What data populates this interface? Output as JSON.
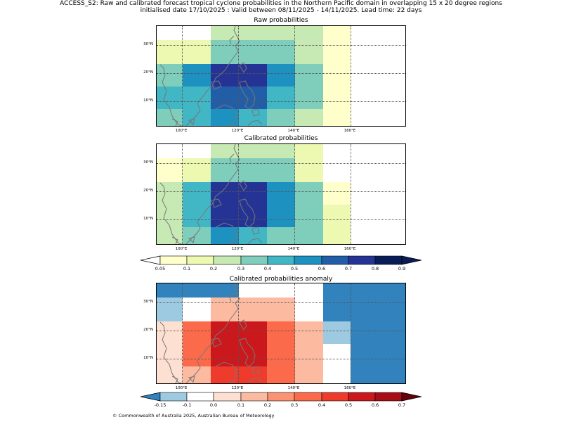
{
  "header": {
    "line1": "ACCESS_S2: Raw and calibrated forecast tropical cyclone probabilities in the Northern Pacific domain in overlapping 15 x 20 degree regions",
    "line2": "initialised date 17/10/2025 :  Valid between 08/11/2025 - 14/11/2025. Lead time: 22 days"
  },
  "axes": {
    "lat_labels": [
      "30°N",
      "20°N",
      "10°N"
    ],
    "lon_labels": [
      "100°E",
      "120°E",
      "140°E",
      "160°E"
    ]
  },
  "panels": {
    "raw": {
      "title": "Raw probabilities",
      "rows": [
        [
          "#ffffff",
          "#ffffff",
          "#c7e9b4",
          "#c7e9b4",
          "#c7e9b4",
          "#c7e9b4",
          "#ffffcc",
          "#ffffff",
          "#ffffff"
        ],
        [
          "#edf8b1",
          "#edf8b1",
          "#7fcdbb",
          "#7fcdbb",
          "#7fcdbb",
          "#c7e9b4",
          "#ffffcc",
          "#ffffff",
          "#ffffff"
        ],
        [
          "#7fcdbb",
          "#1d91c0",
          "#253494",
          "#253494",
          "#1d91c0",
          "#7fcdbb",
          "#ffffcc",
          "#ffffff",
          "#ffffff"
        ],
        [
          "#41b6c4",
          "#41b6c4",
          "#225ea8",
          "#225ea8",
          "#41b6c4",
          "#7fcdbb",
          "#ffffcc",
          "#ffffff",
          "#ffffff"
        ],
        [
          "#7fcdbb",
          "#41b6c4",
          "#1d91c0",
          "#41b6c4",
          "#7fcdbb",
          "#c7e9b4",
          "#ffffcc",
          "#ffffff",
          "#ffffff"
        ]
      ]
    },
    "calibrated": {
      "title": "Calibrated probabilities",
      "rows": [
        [
          "#ffffff",
          "#ffffff",
          "#c7e9b4",
          "#c7e9b4",
          "#c7e9b4",
          "#edf8b1",
          "#ffffff",
          "#ffffff",
          "#ffffff"
        ],
        [
          "#ffffcc",
          "#edf8b1",
          "#7fcdbb",
          "#7fcdbb",
          "#7fcdbb",
          "#edf8b1",
          "#ffffff",
          "#ffffff",
          "#ffffff"
        ],
        [
          "#c7e9b4",
          "#41b6c4",
          "#253494",
          "#253494",
          "#1d91c0",
          "#7fcdbb",
          "#ffffcc",
          "#ffffff",
          "#ffffff"
        ],
        [
          "#c7e9b4",
          "#41b6c4",
          "#253494",
          "#253494",
          "#1d91c0",
          "#7fcdbb",
          "#edf8b1",
          "#ffffff",
          "#ffffff"
        ],
        [
          "#c7e9b4",
          "#7fcdbb",
          "#1d91c0",
          "#41b6c4",
          "#7fcdbb",
          "#7fcdbb",
          "#edf8b1",
          "#ffffff",
          "#ffffff"
        ]
      ]
    },
    "anomaly": {
      "title": "Calibrated probabilities anomaly",
      "rows": [
        [
          "#3182bd",
          "#3182bd",
          "#3182bd",
          "#ffffff",
          "#ffffff",
          "#ffffff",
          "#3182bd",
          "#3182bd",
          "#3182bd"
        ],
        [
          "#9ecae1",
          "#ffffff",
          "#fcbba1",
          "#fcbba1",
          "#fcbba1",
          "#ffffff",
          "#3182bd",
          "#3182bd",
          "#3182bd"
        ],
        [
          "#fee0d2",
          "#fb6a4a",
          "#cb181d",
          "#cb181d",
          "#fb6a4a",
          "#fcbba1",
          "#9ecae1",
          "#3182bd",
          "#3182bd"
        ],
        [
          "#fee0d2",
          "#fb6a4a",
          "#cb181d",
          "#cb181d",
          "#fb6a4a",
          "#fcbba1",
          "#ffffff",
          "#3182bd",
          "#3182bd"
        ],
        [
          "#fee0d2",
          "#fcbba1",
          "#ef3b2c",
          "#ef3b2c",
          "#fb6a4a",
          "#fcbba1",
          "#ffffff",
          "#3182bd",
          "#3182bd"
        ]
      ]
    }
  },
  "colorbars": {
    "prob": {
      "labels": [
        "0.05",
        "0.1",
        "0.2",
        "0.3",
        "0.4",
        "0.5",
        "0.6",
        "0.7",
        "0.8",
        "0.9"
      ],
      "under": "#ffffff",
      "colors": [
        "#ffffcc",
        "#edf8b1",
        "#c7e9b4",
        "#7fcdbb",
        "#41b6c4",
        "#1d91c0",
        "#225ea8",
        "#253494",
        "#081d58"
      ],
      "over": "#081d58"
    },
    "anom": {
      "labels": [
        "-0.15",
        "-0.1",
        "0.0",
        "0.1",
        "0.2",
        "0.3",
        "0.4",
        "0.5",
        "0.6",
        "0.7"
      ],
      "under": "#3182bd",
      "colors": [
        "#9ecae1",
        "#ffffff",
        "#fee0d2",
        "#fcbba1",
        "#fc9272",
        "#fb6a4a",
        "#ef3b2c",
        "#cb181d",
        "#a50f15"
      ],
      "over": "#67000d"
    }
  },
  "footer": {
    "copyright": "© Commonwealth of Australia 2025, Australian Bureau of Meteorology"
  }
}
